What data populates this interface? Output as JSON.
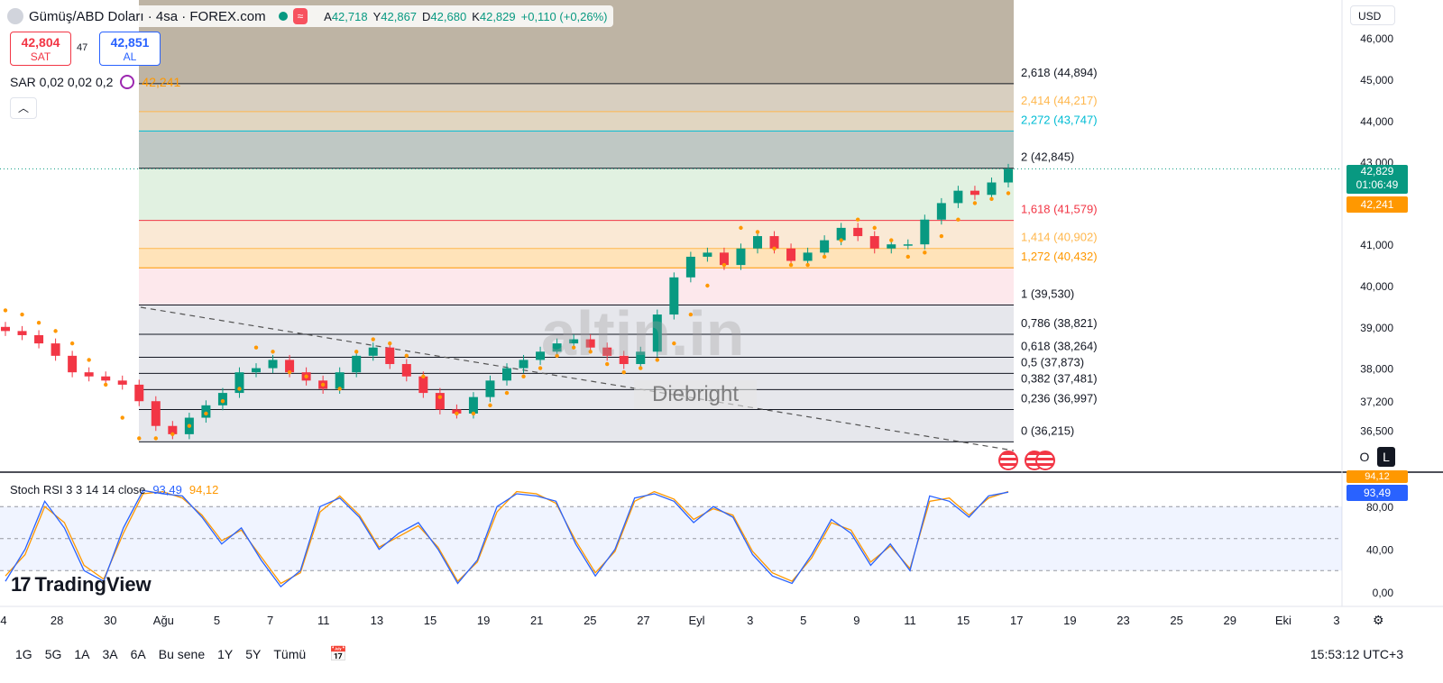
{
  "header": {
    "symbol_title": "Gümüş/ABD Doları · 4sa · FOREX.com",
    "ohlc": [
      {
        "key": "A",
        "value": "42,718"
      },
      {
        "key": "Y",
        "value": "42,867"
      },
      {
        "key": "D",
        "value": "42,680"
      },
      {
        "key": "K",
        "value": "42,829"
      },
      {
        "key": "",
        "value": "+0,110 (+0,26%)"
      }
    ],
    "wave_icon": "≈"
  },
  "trade": {
    "sell_price": "42,804",
    "sell_label": "SAT",
    "spread": "47",
    "buy_price": "42,851",
    "buy_label": "AL"
  },
  "indicator_sar": {
    "label": "SAR 0,02 0,02 0,2",
    "value": "42,241"
  },
  "indicator_stoch": {
    "label": "Stoch RSI 3 3 14 14 close",
    "k_value": "93,49",
    "d_value": "94,12"
  },
  "currency": "USD",
  "price_tags": {
    "last_price": "42,829",
    "countdown": "01:06:49",
    "sar_tag": "42,241",
    "stoch_d_tag": "94,12",
    "stoch_k_tag": "93,49"
  },
  "mode_buttons": {
    "o": "O",
    "l": "L"
  },
  "watermark": {
    "brand": "altin.in",
    "author": "Diebright"
  },
  "logo_text": "TradingView",
  "bottom": {
    "ranges": [
      "1G",
      "5G",
      "1A",
      "3A",
      "6A",
      "Bu sene",
      "1Y",
      "5Y",
      "Tümü"
    ],
    "clock": "15:53:12 UTC+3"
  },
  "colors": {
    "up": "#089981",
    "down": "#f23645",
    "sar": "#ff9800",
    "stoch_k": "#2962ff",
    "stoch_d": "#ff9800"
  },
  "chart_data": {
    "type": "candlestick",
    "title": "Gümüş/ABD Doları · 4sa · FOREX.com",
    "price_axis": {
      "ticks": [
        "46,000",
        "45,000",
        "44,000",
        "43,000",
        "42,000",
        "41,000",
        "40,000",
        "39,000",
        "38,000",
        "37,200",
        "36,500"
      ],
      "tick_values": [
        46.0,
        45.0,
        44.0,
        43.0,
        42.0,
        41.0,
        40.0,
        39.0,
        38.0,
        37.2,
        36.5
      ]
    },
    "time_axis": {
      "ticks": [
        "4",
        "28",
        "30",
        "Ağu",
        "5",
        "7",
        "11",
        "13",
        "15",
        "19",
        "21",
        "25",
        "27",
        "Eyl",
        "3",
        "5",
        "9",
        "11",
        "15",
        "17",
        "19",
        "23",
        "25",
        "29",
        "Eki",
        "3"
      ]
    },
    "fibonacci": [
      {
        "label": "0 (36,215)",
        "price": 36.215,
        "color": "#131722"
      },
      {
        "label": "0,236 (36,997)",
        "price": 36.997,
        "color": "#131722"
      },
      {
        "label": "0,382 (37,481)",
        "price": 37.481,
        "color": "#131722"
      },
      {
        "label": "0,5 (37,873)",
        "price": 37.873,
        "color": "#131722"
      },
      {
        "label": "0,618 (38,264)",
        "price": 38.264,
        "color": "#131722"
      },
      {
        "label": "0,786 (38,821)",
        "price": 38.821,
        "color": "#131722"
      },
      {
        "label": "1 (39,530)",
        "price": 39.53,
        "color": "#131722"
      },
      {
        "label": "1,272 (40,432)",
        "price": 40.432,
        "color": "#ff9800"
      },
      {
        "label": "1,414 (40,902)",
        "price": 40.902,
        "color": "#ffb74d"
      },
      {
        "label": "1,618 (41,579)",
        "price": 41.579,
        "color": "#f23645"
      },
      {
        "label": "2 (42,845)",
        "price": 42.845,
        "color": "#131722"
      },
      {
        "label": "2,272 (43,747)",
        "price": 43.747,
        "color": "#00bcd4"
      },
      {
        "label": "2,414 (44,217)",
        "price": 44.217,
        "color": "#ffb74d"
      },
      {
        "label": "2,618 (44,894)",
        "price": 44.894,
        "color": "#131722"
      }
    ],
    "price_series": [
      38.9,
      38.8,
      38.6,
      38.3,
      37.9,
      37.8,
      37.7,
      37.6,
      37.2,
      36.6,
      36.4,
      36.8,
      37.1,
      37.4,
      37.9,
      38.0,
      38.2,
      37.9,
      37.7,
      37.5,
      37.9,
      38.3,
      38.5,
      38.1,
      37.8,
      37.4,
      37.0,
      36.9,
      37.3,
      37.7,
      38.0,
      38.2,
      38.4,
      38.6,
      38.7,
      38.5,
      38.3,
      38.1,
      38.4,
      39.3,
      40.2,
      40.7,
      40.8,
      40.5,
      40.9,
      41.2,
      40.9,
      40.6,
      40.8,
      41.1,
      41.4,
      41.2,
      40.9,
      41.0,
      41.0,
      41.6,
      42.0,
      42.3,
      42.2,
      42.5,
      42.83
    ],
    "sar_series": [
      39.4,
      39.3,
      39.1,
      38.9,
      38.6,
      38.2,
      37.6,
      36.8,
      36.3,
      36.3,
      36.4,
      36.6,
      36.9,
      37.2,
      37.5,
      38.5,
      38.4,
      37.9,
      37.8,
      37.6,
      37.5,
      38.4,
      38.7,
      38.6,
      38.3,
      37.8,
      37.3,
      36.9,
      36.9,
      37.1,
      37.4,
      37.8,
      38.0,
      38.3,
      38.5,
      38.4,
      38.1,
      37.9,
      38.0,
      38.2,
      38.6,
      39.3,
      40.0,
      40.5,
      41.4,
      41.3,
      40.9,
      40.5,
      40.5,
      40.7,
      41.1,
      41.6,
      41.4,
      41.1,
      40.7,
      40.8,
      41.2,
      41.6,
      42.0,
      42.1,
      42.24
    ],
    "stoch_k": [
      10,
      40,
      85,
      60,
      20,
      10,
      60,
      95,
      92,
      90,
      70,
      45,
      60,
      30,
      5,
      20,
      80,
      88,
      70,
      40,
      55,
      65,
      40,
      8,
      30,
      80,
      92,
      90,
      85,
      45,
      15,
      40,
      88,
      92,
      85,
      65,
      80,
      70,
      35,
      15,
      8,
      35,
      68,
      55,
      25,
      45,
      20,
      90,
      85,
      70,
      90,
      93.49
    ],
    "stoch_d": [
      15,
      35,
      80,
      65,
      25,
      12,
      55,
      92,
      94,
      88,
      72,
      48,
      58,
      33,
      8,
      18,
      75,
      90,
      72,
      42,
      52,
      62,
      42,
      10,
      28,
      75,
      94,
      92,
      83,
      48,
      18,
      38,
      85,
      94,
      87,
      68,
      78,
      72,
      38,
      18,
      10,
      32,
      65,
      58,
      28,
      43,
      22,
      85,
      88,
      72,
      88,
      94.12
    ],
    "stoch_axis": {
      "ticks": [
        "80,00",
        "40,00",
        "0,00"
      ],
      "tick_values": [
        80,
        40,
        0
      ]
    }
  }
}
